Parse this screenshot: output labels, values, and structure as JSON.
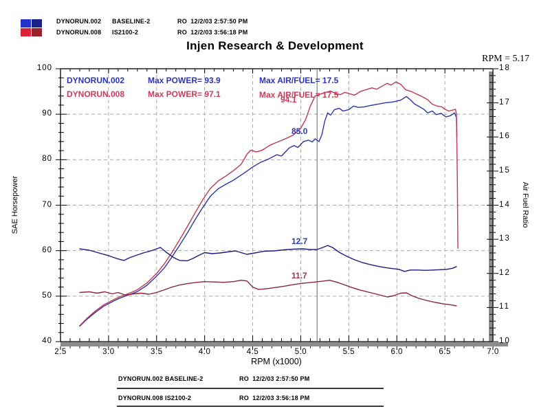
{
  "title": "Injen Research & Development",
  "cursor_readout": "RPM = 5.17",
  "header": {
    "squares": [
      "#2233cc",
      "#1a2288",
      "#dd2233",
      "#99222e"
    ],
    "rows": [
      {
        "file": "DYNORUN.002",
        "desc": "BASELINE-2",
        "stamp": "RO  12/2/03 2:57:50 PM"
      },
      {
        "file": "DYNORUN.008",
        "desc": "IS2100-2",
        "stamp": "RO  12/2/03 3:56:18 PM"
      }
    ]
  },
  "legend": {
    "runs": [
      {
        "file": "DYNORUN.002",
        "power": "Max POWER= 93.9",
        "afr": "Max AIR/FUEL= 17.5",
        "color": "#2a35bb"
      },
      {
        "file": "DYNORUN.008",
        "power": "Max POWER= 97.1",
        "afr": "Max AIR/FUEL= 17.5",
        "color": "#cc3a55"
      }
    ]
  },
  "annotations": [
    {
      "text": "94.1",
      "color": "#cc3a55"
    },
    {
      "text": "85.0",
      "color": "#2a35bb"
    },
    {
      "text": "12.7",
      "color": "#2a35bb"
    },
    {
      "text": "11.7",
      "color": "#a03048"
    }
  ],
  "footer": {
    "rows": [
      {
        "file": "DYNORUN.002",
        "desc": "BASELINE-2",
        "stamp": "RO  12/2/03 2:57:50 PM"
      },
      {
        "file": "DYNORUN.008",
        "desc": "IS2100-2",
        "stamp": "RO  12/2/03 3:56:18 PM"
      }
    ]
  },
  "chart_data": {
    "type": "line",
    "title": "Injen Research & Development",
    "cursor_rpm": 5.17,
    "grid": true,
    "x_axis": {
      "label": "RPM (x1000)",
      "min": 2.5,
      "max": 7.0,
      "ticks": [
        "2.5",
        "3.0",
        "3.5",
        "4.0",
        "4.5",
        "5.0",
        "5.5",
        "6.0",
        "6.5",
        "7.0"
      ]
    },
    "y_left": {
      "label": "SAE Horsepower",
      "min": 40,
      "max": 100,
      "ticks": [
        "40",
        "50",
        "60",
        "70",
        "80",
        "90",
        "100"
      ]
    },
    "y_right": {
      "label": "Air Fuel Ratio",
      "min": 10,
      "max": 18,
      "ticks": [
        "10",
        "11",
        "12",
        "13",
        "14",
        "15",
        "16",
        "17",
        "18"
      ]
    },
    "series": [
      {
        "name": "DYNORUN.002 power",
        "axis": "left",
        "color": "#2a35a8",
        "max_label": 93.9,
        "points": [
          [
            2.7,
            43.4
          ],
          [
            2.78,
            45.0
          ],
          [
            2.86,
            46.4
          ],
          [
            2.95,
            47.8
          ],
          [
            3.05,
            48.9
          ],
          [
            3.12,
            49.6
          ],
          [
            3.2,
            50.2
          ],
          [
            3.3,
            51.0
          ],
          [
            3.4,
            52.4
          ],
          [
            3.5,
            54.4
          ],
          [
            3.58,
            56.2
          ],
          [
            3.66,
            58.6
          ],
          [
            3.74,
            61.2
          ],
          [
            3.82,
            63.9
          ],
          [
            3.9,
            66.8
          ],
          [
            3.98,
            69.5
          ],
          [
            4.06,
            72.0
          ],
          [
            4.14,
            73.6
          ],
          [
            4.22,
            74.6
          ],
          [
            4.3,
            75.5
          ],
          [
            4.4,
            76.9
          ],
          [
            4.5,
            78.4
          ],
          [
            4.58,
            79.4
          ],
          [
            4.66,
            80.1
          ],
          [
            4.75,
            81.1
          ],
          [
            4.8,
            80.8
          ],
          [
            4.88,
            82.6
          ],
          [
            4.93,
            83.1
          ],
          [
            4.97,
            82.7
          ],
          [
            5.03,
            84.0
          ],
          [
            5.08,
            84.3
          ],
          [
            5.12,
            83.9
          ],
          [
            5.15,
            84.6
          ],
          [
            5.19,
            84.0
          ],
          [
            5.22,
            85.5
          ],
          [
            5.25,
            88.5
          ],
          [
            5.28,
            90.3
          ],
          [
            5.31,
            89.8
          ],
          [
            5.35,
            91.0
          ],
          [
            5.4,
            91.3
          ],
          [
            5.44,
            90.7
          ],
          [
            5.5,
            91.0
          ],
          [
            5.55,
            91.8
          ],
          [
            5.6,
            91.5
          ],
          [
            5.66,
            91.6
          ],
          [
            5.72,
            91.9
          ],
          [
            5.8,
            92.2
          ],
          [
            5.88,
            92.5
          ],
          [
            5.96,
            92.7
          ],
          [
            6.04,
            93.1
          ],
          [
            6.1,
            93.9
          ],
          [
            6.14,
            93.2
          ],
          [
            6.18,
            92.3
          ],
          [
            6.24,
            91.6
          ],
          [
            6.28,
            91.1
          ],
          [
            6.32,
            90.3
          ],
          [
            6.37,
            90.7
          ],
          [
            6.41,
            89.9
          ],
          [
            6.46,
            90.2
          ],
          [
            6.51,
            89.4
          ],
          [
            6.56,
            89.7
          ],
          [
            6.6,
            90.3
          ],
          [
            6.62,
            89.3
          ],
          [
            6.625,
            85.2
          ]
        ]
      },
      {
        "name": "DYNORUN.008 power",
        "axis": "left",
        "color": "#c03850",
        "max_label": 97.1,
        "points": [
          [
            2.7,
            43.5
          ],
          [
            2.78,
            45.2
          ],
          [
            2.86,
            46.7
          ],
          [
            2.95,
            48.1
          ],
          [
            3.05,
            49.2
          ],
          [
            3.12,
            49.9
          ],
          [
            3.2,
            50.5
          ],
          [
            3.3,
            51.4
          ],
          [
            3.4,
            52.9
          ],
          [
            3.5,
            55.0
          ],
          [
            3.58,
            57.1
          ],
          [
            3.66,
            59.6
          ],
          [
            3.74,
            62.4
          ],
          [
            3.82,
            65.3
          ],
          [
            3.9,
            68.3
          ],
          [
            3.98,
            71.2
          ],
          [
            4.06,
            73.7
          ],
          [
            4.14,
            75.3
          ],
          [
            4.22,
            76.4
          ],
          [
            4.3,
            77.6
          ],
          [
            4.38,
            79.0
          ],
          [
            4.44,
            81.2
          ],
          [
            4.48,
            82.1
          ],
          [
            4.54,
            81.7
          ],
          [
            4.6,
            82.1
          ],
          [
            4.68,
            83.2
          ],
          [
            4.76,
            83.9
          ],
          [
            4.84,
            84.6
          ],
          [
            4.92,
            85.4
          ],
          [
            5.0,
            86.9
          ],
          [
            5.05,
            88.8
          ],
          [
            5.1,
            91.8
          ],
          [
            5.15,
            94.0
          ],
          [
            5.2,
            94.4
          ],
          [
            5.26,
            94.8
          ],
          [
            5.31,
            95.1
          ],
          [
            5.36,
            94.6
          ],
          [
            5.41,
            94.3
          ],
          [
            5.46,
            94.8
          ],
          [
            5.51,
            94.5
          ],
          [
            5.56,
            94.2
          ],
          [
            5.62,
            95.0
          ],
          [
            5.68,
            95.4
          ],
          [
            5.74,
            95.8
          ],
          [
            5.79,
            95.5
          ],
          [
            5.85,
            96.2
          ],
          [
            5.9,
            96.8
          ],
          [
            5.94,
            96.4
          ],
          [
            5.99,
            97.1
          ],
          [
            6.04,
            96.6
          ],
          [
            6.09,
            95.4
          ],
          [
            6.15,
            95.0
          ],
          [
            6.21,
            94.4
          ],
          [
            6.27,
            93.8
          ],
          [
            6.32,
            93.2
          ],
          [
            6.37,
            92.2
          ],
          [
            6.42,
            91.8
          ],
          [
            6.47,
            91.6
          ],
          [
            6.5,
            91.1
          ],
          [
            6.54,
            90.7
          ],
          [
            6.58,
            90.9
          ],
          [
            6.61,
            91.1
          ],
          [
            6.62,
            90.0
          ],
          [
            6.63,
            75.0
          ],
          [
            6.635,
            60.5
          ]
        ]
      },
      {
        "name": "DYNORUN.002 air/fuel",
        "axis": "right",
        "color": "#1a1a80",
        "max_label": 17.5,
        "points": [
          [
            2.7,
            12.72
          ],
          [
            2.8,
            12.68
          ],
          [
            2.9,
            12.6
          ],
          [
            3.0,
            12.52
          ],
          [
            3.08,
            12.44
          ],
          [
            3.16,
            12.38
          ],
          [
            3.22,
            12.46
          ],
          [
            3.28,
            12.52
          ],
          [
            3.36,
            12.6
          ],
          [
            3.44,
            12.66
          ],
          [
            3.5,
            12.72
          ],
          [
            3.54,
            12.76
          ],
          [
            3.6,
            12.62
          ],
          [
            3.68,
            12.46
          ],
          [
            3.74,
            12.38
          ],
          [
            3.82,
            12.37
          ],
          [
            3.88,
            12.44
          ],
          [
            3.94,
            12.53
          ],
          [
            4.0,
            12.61
          ],
          [
            4.08,
            12.58
          ],
          [
            4.16,
            12.6
          ],
          [
            4.24,
            12.63
          ],
          [
            4.32,
            12.66
          ],
          [
            4.38,
            12.61
          ],
          [
            4.44,
            12.56
          ],
          [
            4.52,
            12.6
          ],
          [
            4.62,
            12.65
          ],
          [
            4.72,
            12.66
          ],
          [
            4.82,
            12.69
          ],
          [
            4.92,
            12.71
          ],
          [
            5.02,
            12.72
          ],
          [
            5.1,
            12.7
          ],
          [
            5.17,
            12.7
          ],
          [
            5.23,
            12.76
          ],
          [
            5.28,
            12.82
          ],
          [
            5.33,
            12.76
          ],
          [
            5.4,
            12.62
          ],
          [
            5.48,
            12.5
          ],
          [
            5.56,
            12.4
          ],
          [
            5.64,
            12.32
          ],
          [
            5.72,
            12.26
          ],
          [
            5.8,
            12.21
          ],
          [
            5.88,
            12.17
          ],
          [
            5.96,
            12.14
          ],
          [
            6.02,
            12.12
          ],
          [
            6.08,
            12.06
          ],
          [
            6.14,
            12.1
          ],
          [
            6.22,
            12.1
          ],
          [
            6.3,
            12.09
          ],
          [
            6.38,
            12.1
          ],
          [
            6.46,
            12.11
          ],
          [
            6.52,
            12.12
          ],
          [
            6.58,
            12.15
          ],
          [
            6.62,
            12.2
          ]
        ]
      },
      {
        "name": "DYNORUN.008 air/fuel",
        "axis": "right",
        "color": "#8c2438",
        "max_label": 17.5,
        "points": [
          [
            2.7,
            11.44
          ],
          [
            2.8,
            11.46
          ],
          [
            2.88,
            11.42
          ],
          [
            2.96,
            11.46
          ],
          [
            3.04,
            11.4
          ],
          [
            3.1,
            11.44
          ],
          [
            3.18,
            11.36
          ],
          [
            3.26,
            11.4
          ],
          [
            3.34,
            11.42
          ],
          [
            3.42,
            11.39
          ],
          [
            3.5,
            11.44
          ],
          [
            3.58,
            11.52
          ],
          [
            3.66,
            11.6
          ],
          [
            3.74,
            11.66
          ],
          [
            3.82,
            11.7
          ],
          [
            3.9,
            11.73
          ],
          [
            4.0,
            11.76
          ],
          [
            4.1,
            11.75
          ],
          [
            4.2,
            11.74
          ],
          [
            4.3,
            11.76
          ],
          [
            4.38,
            11.8
          ],
          [
            4.44,
            11.78
          ],
          [
            4.5,
            11.6
          ],
          [
            4.56,
            11.53
          ],
          [
            4.64,
            11.55
          ],
          [
            4.72,
            11.58
          ],
          [
            4.82,
            11.62
          ],
          [
            4.92,
            11.67
          ],
          [
            5.02,
            11.71
          ],
          [
            5.12,
            11.74
          ],
          [
            5.22,
            11.77
          ],
          [
            5.3,
            11.8
          ],
          [
            5.38,
            11.74
          ],
          [
            5.46,
            11.66
          ],
          [
            5.54,
            11.58
          ],
          [
            5.62,
            11.51
          ],
          [
            5.72,
            11.44
          ],
          [
            5.82,
            11.37
          ],
          [
            5.9,
            11.31
          ],
          [
            5.96,
            11.34
          ],
          [
            6.04,
            11.42
          ],
          [
            6.1,
            11.43
          ],
          [
            6.16,
            11.34
          ],
          [
            6.24,
            11.26
          ],
          [
            6.32,
            11.2
          ],
          [
            6.4,
            11.15
          ],
          [
            6.48,
            11.11
          ],
          [
            6.56,
            11.08
          ],
          [
            6.62,
            11.05
          ]
        ]
      }
    ]
  }
}
